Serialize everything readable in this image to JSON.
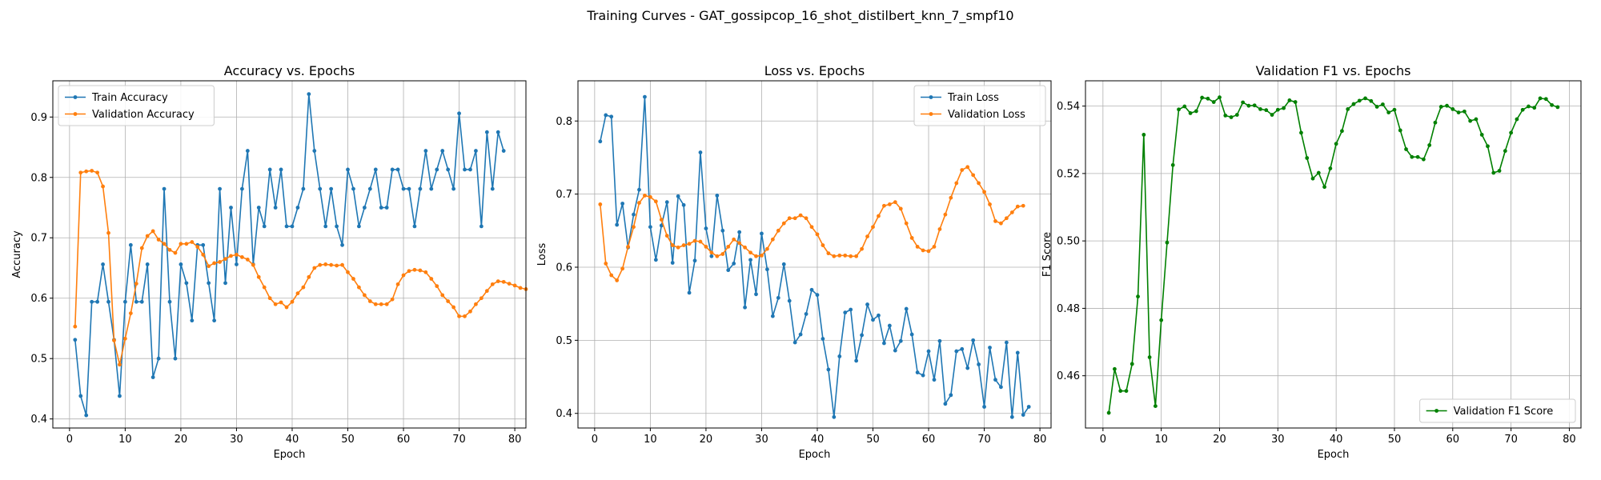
{
  "figure": {
    "suptitle": "Training Curves - GAT_gossipcop_16_shot_distilbert_knn_7_smpf10",
    "colors": {
      "blue": "#1f77b4",
      "orange": "#ff7f0e",
      "green": "#008000",
      "grid": "#b0b0b0"
    }
  },
  "chart_data": [
    {
      "type": "line",
      "title": "Accuracy vs. Epochs",
      "xlabel": "Epoch",
      "ylabel": "Accuracy",
      "xlim": [
        -3,
        82
      ],
      "ylim": [
        0.385,
        0.96
      ],
      "xticks": [
        0,
        10,
        20,
        30,
        40,
        50,
        60,
        70,
        80
      ],
      "yticks": [
        0.4,
        0.5,
        0.6,
        0.7,
        0.8,
        0.9
      ],
      "ytick_labels": [
        "0.4",
        "0.5",
        "0.6",
        "0.7",
        "0.8",
        "0.9"
      ],
      "grid": true,
      "legend": "upper-left",
      "series": [
        {
          "name": "Train Accuracy",
          "color": "#1f77b4",
          "values": [
            0.531,
            0.438,
            0.406,
            0.594,
            0.594,
            0.656,
            0.594,
            0.531,
            0.438,
            0.594,
            0.688,
            0.594,
            0.594,
            0.656,
            0.469,
            0.5,
            0.781,
            0.594,
            0.5,
            0.656,
            0.625,
            0.563,
            0.688,
            0.688,
            0.625,
            0.563,
            0.781,
            0.625,
            0.75,
            0.656,
            0.781,
            0.844,
            0.656,
            0.75,
            0.719,
            0.813,
            0.75,
            0.813,
            0.719,
            0.719,
            0.75,
            0.781,
            0.938,
            0.844,
            0.781,
            0.719,
            0.781,
            0.719,
            0.688,
            0.813,
            0.781,
            0.719,
            0.75,
            0.781,
            0.813,
            0.75,
            0.75,
            0.813,
            0.813,
            0.781,
            0.781,
            0.719,
            0.781,
            0.844,
            0.781,
            0.813,
            0.844,
            0.813,
            0.781,
            0.906,
            0.813,
            0.813,
            0.844,
            0.719,
            0.875,
            0.781,
            0.875,
            0.844
          ]
        },
        {
          "name": "Validation Accuracy",
          "color": "#ff7f0e",
          "values": [
            0.553,
            0.808,
            0.81,
            0.811,
            0.808,
            0.785,
            0.708,
            0.53,
            0.49,
            0.533,
            0.575,
            0.624,
            0.683,
            0.703,
            0.711,
            0.697,
            0.69,
            0.68,
            0.675,
            0.69,
            0.69,
            0.693,
            0.685,
            0.672,
            0.653,
            0.658,
            0.66,
            0.665,
            0.67,
            0.672,
            0.668,
            0.664,
            0.655,
            0.635,
            0.618,
            0.6,
            0.59,
            0.593,
            0.585,
            0.594,
            0.608,
            0.618,
            0.635,
            0.65,
            0.655,
            0.656,
            0.655,
            0.654,
            0.655,
            0.643,
            0.632,
            0.618,
            0.605,
            0.595,
            0.59,
            0.59,
            0.59,
            0.598,
            0.623,
            0.638,
            0.645,
            0.647,
            0.646,
            0.643,
            0.632,
            0.62,
            0.605,
            0.595,
            0.585,
            0.57,
            0.57,
            0.578,
            0.59,
            0.6,
            0.612,
            0.623,
            0.628,
            0.627,
            0.624,
            0.621,
            0.617,
            0.615
          ]
        }
      ]
    },
    {
      "type": "line",
      "title": "Loss vs. Epochs",
      "xlabel": "Epoch",
      "ylabel": "Loss",
      "xlim": [
        -3,
        82
      ],
      "ylim": [
        0.38,
        0.855
      ],
      "xticks": [
        0,
        10,
        20,
        30,
        40,
        50,
        60,
        70,
        80
      ],
      "yticks": [
        0.4,
        0.5,
        0.6,
        0.7,
        0.8
      ],
      "ytick_labels": [
        "0.4",
        "0.5",
        "0.6",
        "0.7",
        "0.8"
      ],
      "grid": true,
      "legend": "upper-right",
      "series": [
        {
          "name": "Train Loss",
          "color": "#1f77b4",
          "values": [
            0.772,
            0.808,
            0.806,
            0.658,
            0.687,
            0.627,
            0.672,
            0.706,
            0.833,
            0.655,
            0.61,
            0.657,
            0.689,
            0.606,
            0.697,
            0.685,
            0.565,
            0.609,
            0.757,
            0.653,
            0.615,
            0.698,
            0.65,
            0.596,
            0.605,
            0.648,
            0.545,
            0.61,
            0.563,
            0.646,
            0.597,
            0.533,
            0.558,
            0.604,
            0.554,
            0.497,
            0.508,
            0.536,
            0.569,
            0.562,
            0.502,
            0.46,
            0.395,
            0.478,
            0.538,
            0.542,
            0.472,
            0.507,
            0.549,
            0.528,
            0.534,
            0.496,
            0.52,
            0.486,
            0.499,
            0.543,
            0.508,
            0.456,
            0.452,
            0.485,
            0.446,
            0.499,
            0.413,
            0.425,
            0.485,
            0.488,
            0.462,
            0.5,
            0.467,
            0.409,
            0.49,
            0.446,
            0.436,
            0.497,
            0.395,
            0.483,
            0.398,
            0.409
          ]
        },
        {
          "name": "Validation Loss",
          "color": "#ff7f0e",
          "values": [
            0.686,
            0.605,
            0.589,
            0.582,
            0.598,
            0.628,
            0.655,
            0.688,
            0.698,
            0.696,
            0.69,
            0.665,
            0.643,
            0.63,
            0.627,
            0.63,
            0.632,
            0.636,
            0.635,
            0.628,
            0.62,
            0.615,
            0.618,
            0.628,
            0.638,
            0.633,
            0.627,
            0.62,
            0.615,
            0.616,
            0.625,
            0.638,
            0.65,
            0.66,
            0.667,
            0.667,
            0.671,
            0.667,
            0.655,
            0.645,
            0.63,
            0.619,
            0.615,
            0.616,
            0.616,
            0.615,
            0.615,
            0.625,
            0.642,
            0.655,
            0.67,
            0.684,
            0.686,
            0.689,
            0.68,
            0.66,
            0.64,
            0.628,
            0.623,
            0.622,
            0.628,
            0.652,
            0.672,
            0.695,
            0.715,
            0.733,
            0.737,
            0.726,
            0.715,
            0.703,
            0.686,
            0.663,
            0.66,
            0.667,
            0.675,
            0.683,
            0.684
          ]
        }
      ]
    },
    {
      "type": "line",
      "title": "Validation F1 vs. Epochs",
      "xlabel": "Epoch",
      "ylabel": "F1 Score",
      "xlim": [
        -3,
        82
      ],
      "ylim": [
        0.4445,
        0.5475
      ],
      "xticks": [
        0,
        10,
        20,
        30,
        40,
        50,
        60,
        70,
        80
      ],
      "yticks": [
        0.46,
        0.48,
        0.5,
        0.52,
        0.54
      ],
      "ytick_labels": [
        "0.46",
        "0.48",
        "0.50",
        "0.52",
        "0.54"
      ],
      "grid": true,
      "legend": "lower-right",
      "series": [
        {
          "name": "Validation F1 Score",
          "color": "#008000",
          "values": [
            0.449,
            0.462,
            0.4555,
            0.4555,
            0.4635,
            0.4835,
            0.5315,
            0.4655,
            0.451,
            0.4765,
            0.4995,
            0.5225,
            0.539,
            0.5399,
            0.5379,
            0.5385,
            0.5425,
            0.5422,
            0.5412,
            0.5426,
            0.5372,
            0.5367,
            0.5374,
            0.5411,
            0.5401,
            0.5402,
            0.5391,
            0.5388,
            0.5374,
            0.5389,
            0.5394,
            0.5417,
            0.5412,
            0.5321,
            0.5246,
            0.5185,
            0.5202,
            0.516,
            0.5215,
            0.5288,
            0.5326,
            0.5391,
            0.5406,
            0.5416,
            0.5423,
            0.5415,
            0.5398,
            0.5405,
            0.5381,
            0.5389,
            0.5328,
            0.5272,
            0.5249,
            0.5249,
            0.5242,
            0.5284,
            0.5351,
            0.5398,
            0.5401,
            0.5391,
            0.5381,
            0.5384,
            0.5356,
            0.5361,
            0.5315,
            0.5281,
            0.5202,
            0.5208,
            0.5267,
            0.5321,
            0.5361,
            0.5389,
            0.5399,
            0.5395,
            0.5423,
            0.5421,
            0.5403,
            0.5397
          ]
        }
      ]
    }
  ]
}
